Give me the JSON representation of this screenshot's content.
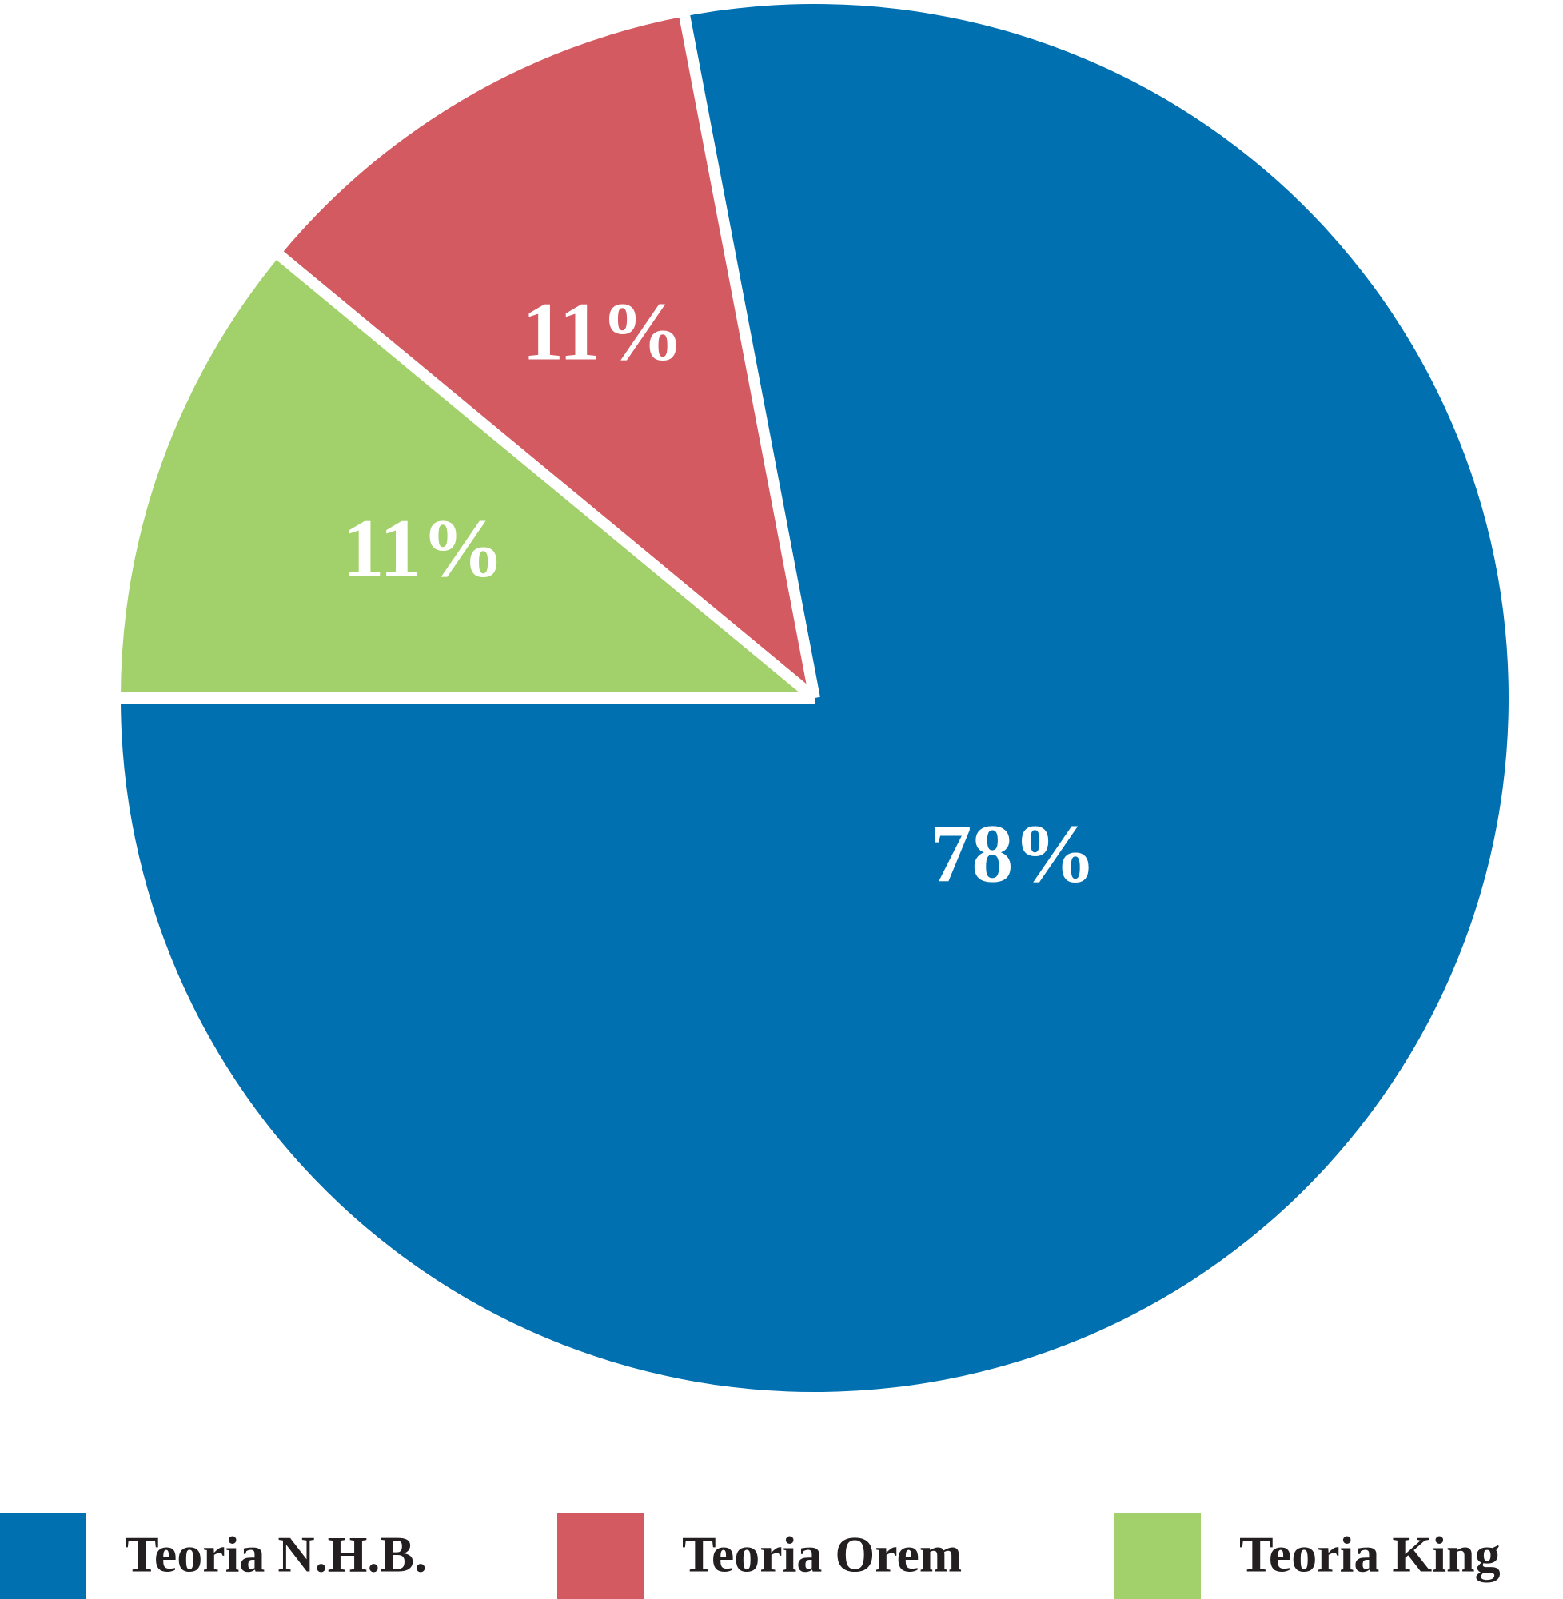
{
  "chart_data": {
    "type": "pie",
    "title": "",
    "start_angle_deg": 180,
    "direction": "counterclockwise",
    "slices": [
      {
        "label": "Teoria N.H.B.",
        "value": 78,
        "value_label": "78%",
        "color": "#0070b0"
      },
      {
        "label": "Teoria Orem",
        "value": 11,
        "value_label": "11%",
        "color": "#d45a61"
      },
      {
        "label": "Teoria King",
        "value": 11,
        "value_label": "11%",
        "color": "#a2d06b"
      }
    ],
    "legend_position": "bottom",
    "separator_color": "#ffffff"
  }
}
